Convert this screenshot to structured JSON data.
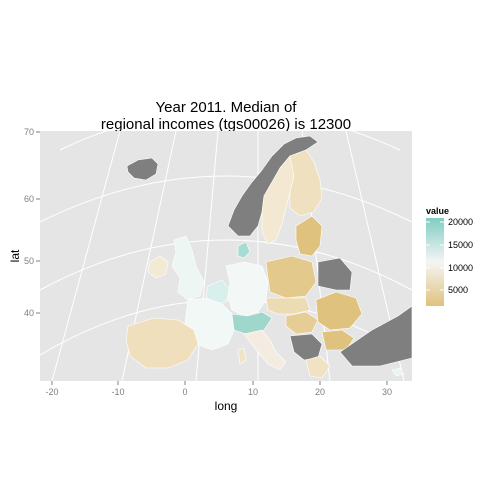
{
  "title_lines": [
    "Year 2011. Median of",
    "regional incomes (tgs00026)  is 12300"
  ],
  "x_axis": {
    "label": "long",
    "ticks": [
      -20,
      -10,
      0,
      10,
      20,
      30
    ],
    "range": [
      -22,
      33
    ]
  },
  "y_axis": {
    "label": "lat",
    "ticks": [
      40,
      50,
      60,
      70
    ],
    "range": [
      29.5,
      70
    ]
  },
  "legend": {
    "title": "value",
    "ticks": [
      20000,
      15000,
      10000,
      5000
    ],
    "range": [
      2500,
      20500
    ],
    "colors": {
      "high": "#80cdc1",
      "mid": "#f5f5f5",
      "low": "#dfc27d"
    }
  },
  "colors": {
    "panel": "#e5e5e5",
    "grid": "#ffffff",
    "no_data": "#7f7f7f"
  }
}
